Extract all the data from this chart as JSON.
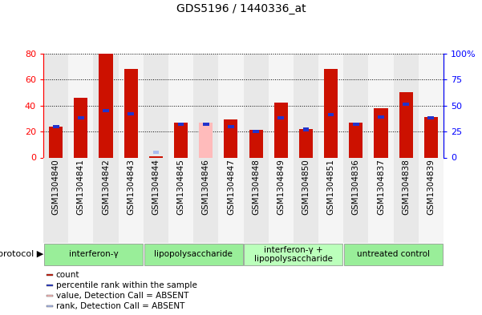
{
  "title": "GDS5196 / 1440336_at",
  "samples": [
    "GSM1304840",
    "GSM1304841",
    "GSM1304842",
    "GSM1304843",
    "GSM1304844",
    "GSM1304845",
    "GSM1304846",
    "GSM1304847",
    "GSM1304848",
    "GSM1304849",
    "GSM1304850",
    "GSM1304851",
    "GSM1304836",
    "GSM1304837",
    "GSM1304838",
    "GSM1304839"
  ],
  "count_values": [
    24,
    46,
    80,
    68,
    1,
    27,
    27,
    29,
    21,
    42,
    22,
    68,
    27,
    38,
    50,
    31
  ],
  "rank_values": [
    30,
    38,
    45,
    42,
    5,
    32,
    32,
    30,
    25,
    38,
    27,
    41,
    32,
    39,
    51,
    38
  ],
  "absent_count": [
    false,
    false,
    false,
    false,
    false,
    false,
    true,
    false,
    false,
    false,
    false,
    false,
    false,
    false,
    false,
    false
  ],
  "absent_rank": [
    false,
    false,
    false,
    false,
    true,
    false,
    false,
    false,
    false,
    false,
    false,
    false,
    false,
    false,
    false,
    false
  ],
  "groups": [
    {
      "label": "interferon-γ",
      "start": 0,
      "end": 4,
      "color": "#99ee99"
    },
    {
      "label": "lipopolysaccharide",
      "start": 4,
      "end": 8,
      "color": "#99ee99"
    },
    {
      "label": "interferon-γ +\nlipopolysaccharide",
      "start": 8,
      "end": 12,
      "color": "#bbffbb"
    },
    {
      "label": "untreated control",
      "start": 12,
      "end": 16,
      "color": "#99ee99"
    }
  ],
  "ylim_left": [
    0,
    80
  ],
  "ylim_right": [
    0,
    100
  ],
  "left_ticks": [
    0,
    20,
    40,
    60,
    80
  ],
  "right_ticks": [
    0,
    25,
    50,
    75,
    100
  ],
  "bar_color_present": "#cc1100",
  "bar_color_absent": "#ffbbbb",
  "rank_color_present": "#2233cc",
  "rank_color_absent": "#aabbee",
  "bar_width": 0.55,
  "legend_items": [
    {
      "label": "count",
      "color": "#cc1100"
    },
    {
      "label": "percentile rank within the sample",
      "color": "#2233cc"
    },
    {
      "label": "value, Detection Call = ABSENT",
      "color": "#ffbbbb"
    },
    {
      "label": "rank, Detection Call = ABSENT",
      "color": "#aabbee"
    }
  ]
}
